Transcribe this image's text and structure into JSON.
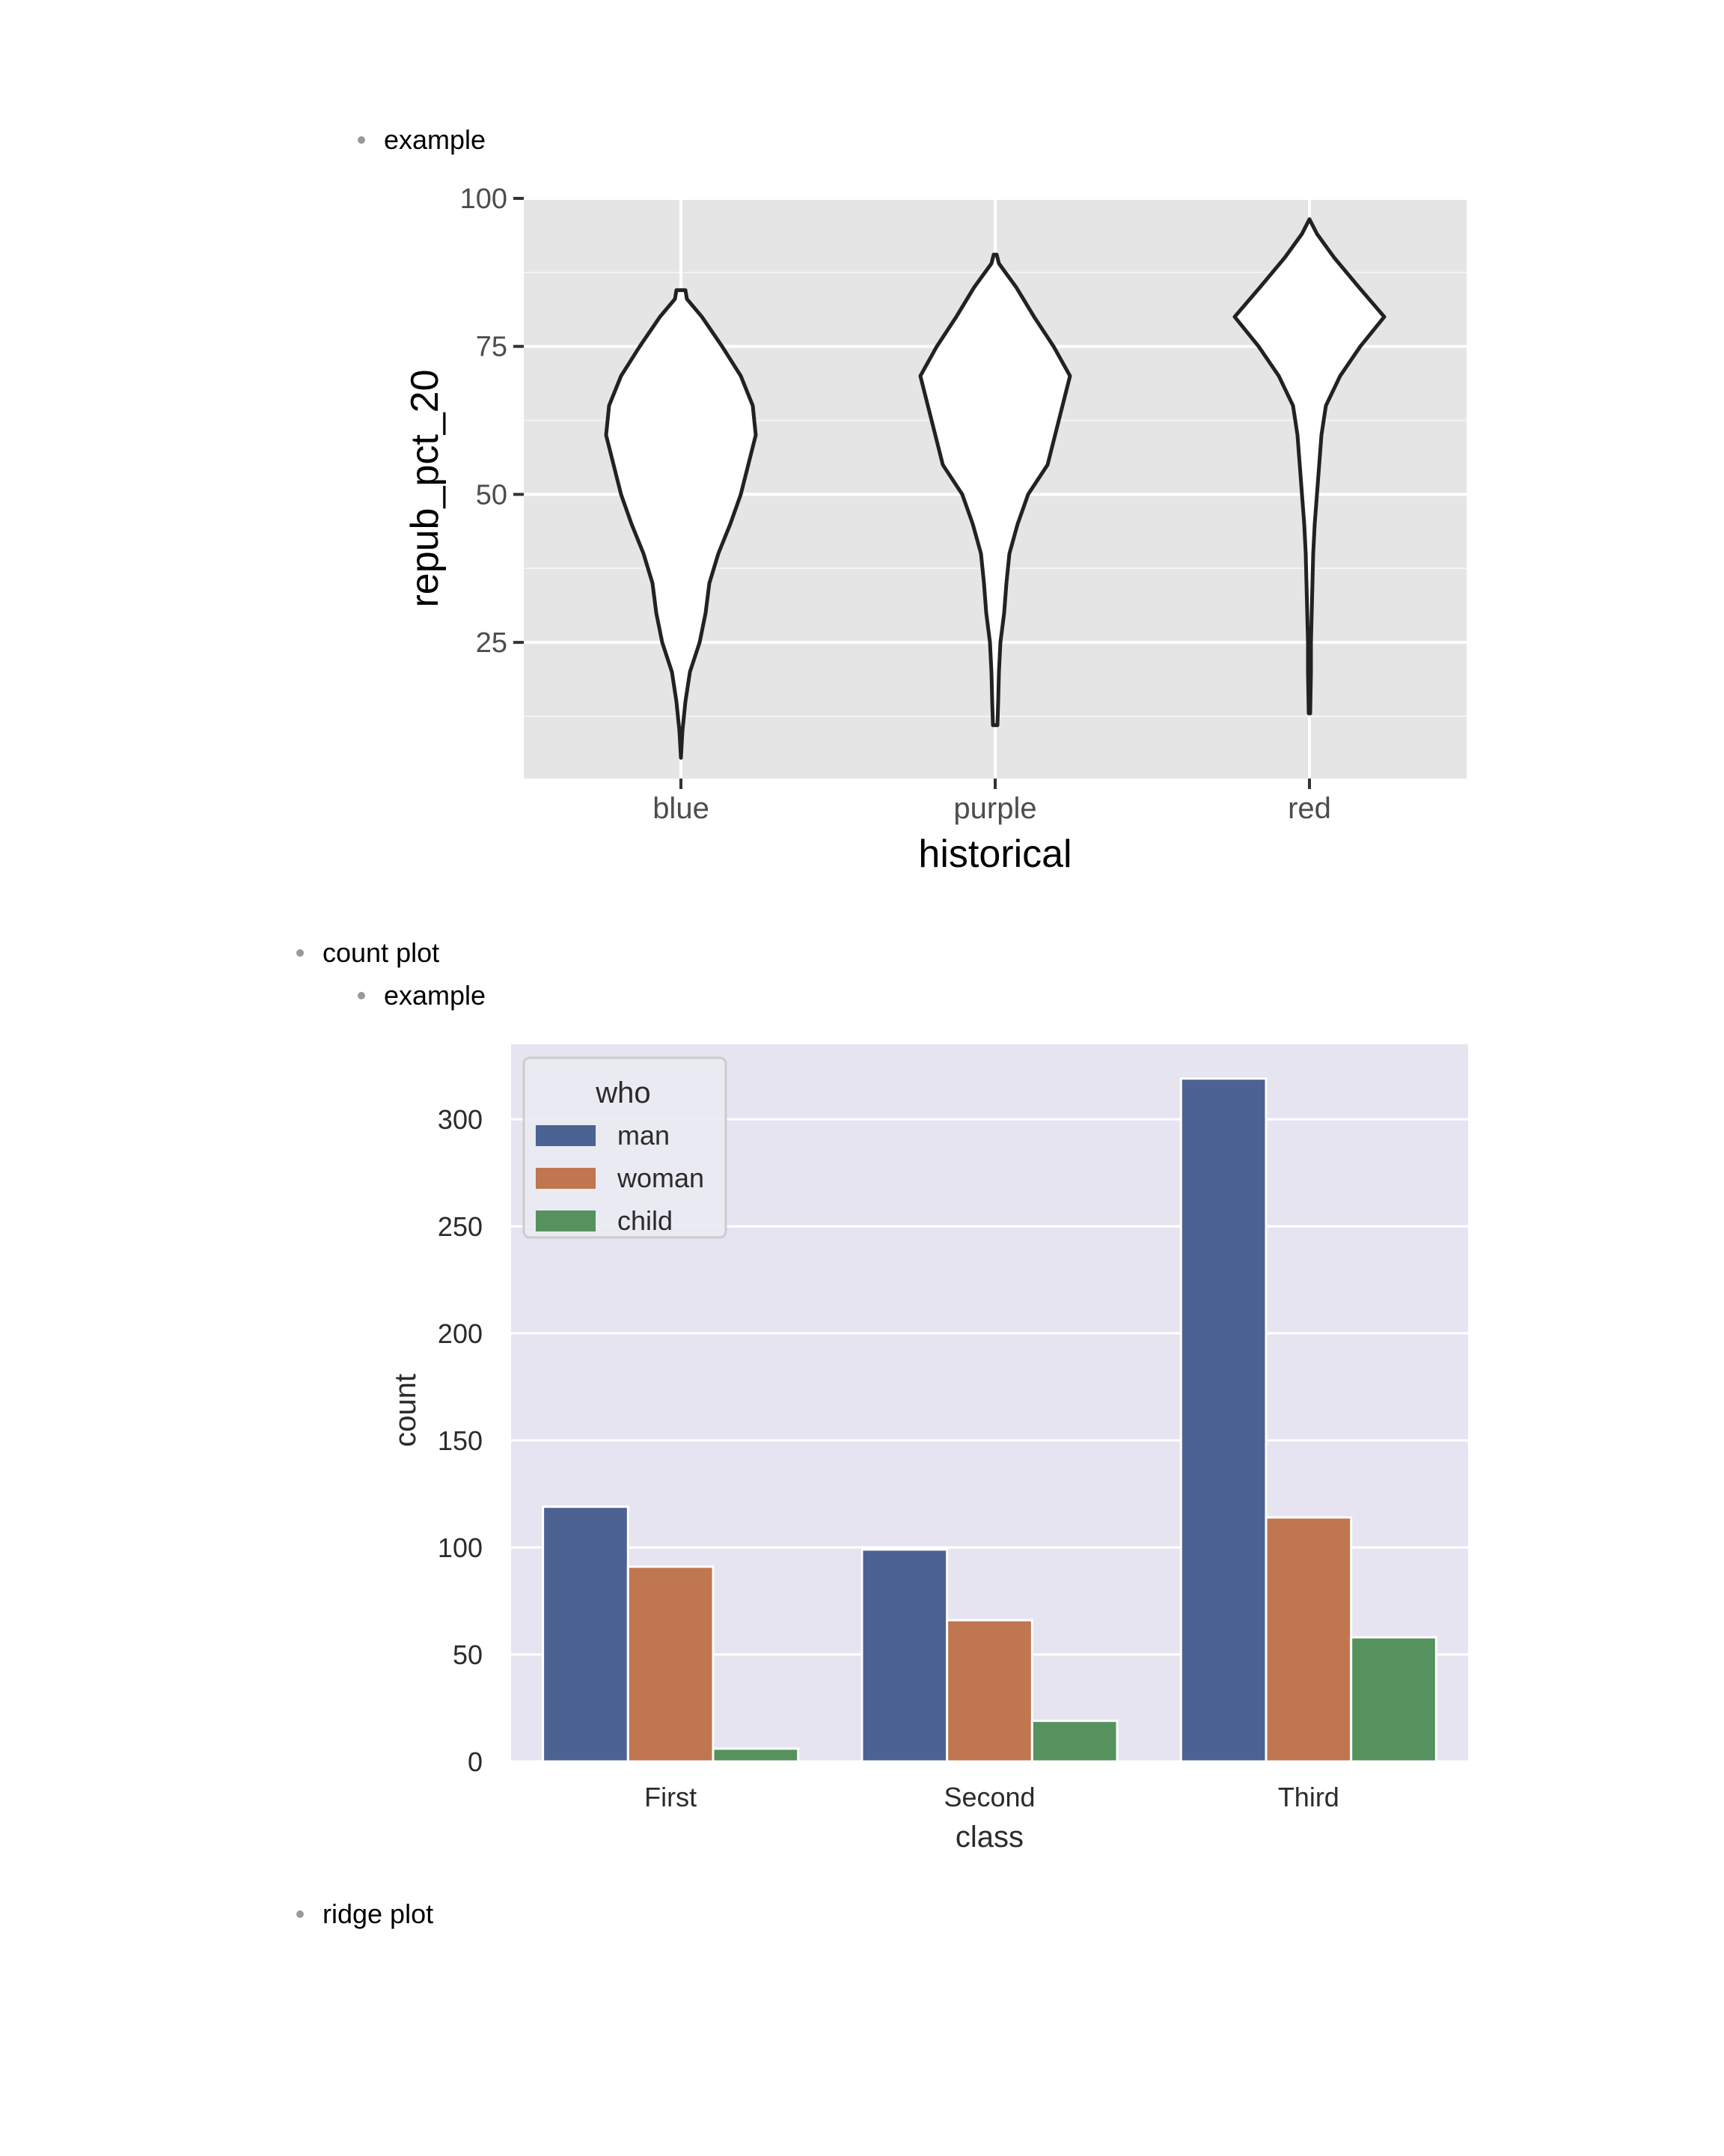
{
  "document": {
    "bullets": [
      {
        "text": "example"
      },
      {
        "text": "count plot"
      },
      {
        "text": "example"
      },
      {
        "text": "ridge plot"
      }
    ]
  },
  "chart_data": [
    {
      "type": "violin",
      "xlabel": "historical",
      "ylabel": "repub_pct_20",
      "categories": [
        "blue",
        "purple",
        "red"
      ],
      "yticks": [
        25,
        50,
        75,
        100
      ],
      "ylim": [
        2,
        100
      ],
      "grid": true,
      "background": "#e5e5e5",
      "violins": [
        {
          "category": "blue",
          "min": 5.5,
          "max": 84.5,
          "profile": [
            [
              5.5,
              0
            ],
            [
              10,
              0.02
            ],
            [
              15,
              0.06
            ],
            [
              20,
              0.12
            ],
            [
              25,
              0.25
            ],
            [
              30,
              0.33
            ],
            [
              35,
              0.38
            ],
            [
              40,
              0.5
            ],
            [
              45,
              0.66
            ],
            [
              50,
              0.8
            ],
            [
              55,
              0.9
            ],
            [
              60,
              1.0
            ],
            [
              65,
              0.96
            ],
            [
              70,
              0.8
            ],
            [
              75,
              0.55
            ],
            [
              80,
              0.28
            ],
            [
              83,
              0.08
            ],
            [
              84.5,
              0.06
            ]
          ]
        },
        {
          "category": "purple",
          "min": 11,
          "max": 90.5,
          "profile": [
            [
              11,
              0.03
            ],
            [
              15,
              0.04
            ],
            [
              20,
              0.05
            ],
            [
              25,
              0.07
            ],
            [
              30,
              0.12
            ],
            [
              35,
              0.15
            ],
            [
              40,
              0.19
            ],
            [
              45,
              0.3
            ],
            [
              50,
              0.44
            ],
            [
              55,
              0.7
            ],
            [
              60,
              0.8
            ],
            [
              65,
              0.9
            ],
            [
              70,
              1.0
            ],
            [
              75,
              0.78
            ],
            [
              80,
              0.52
            ],
            [
              85,
              0.28
            ],
            [
              89,
              0.05
            ],
            [
              90.5,
              0.02
            ]
          ]
        },
        {
          "category": "red",
          "min": 13,
          "max": 96.5,
          "profile": [
            [
              13,
              0.01
            ],
            [
              20,
              0.02
            ],
            [
              25,
              0.02
            ],
            [
              30,
              0.03
            ],
            [
              35,
              0.04
            ],
            [
              40,
              0.05
            ],
            [
              45,
              0.07
            ],
            [
              50,
              0.1
            ],
            [
              55,
              0.13
            ],
            [
              60,
              0.16
            ],
            [
              65,
              0.22
            ],
            [
              70,
              0.41
            ],
            [
              75,
              0.68
            ],
            [
              80,
              1.0
            ],
            [
              85,
              0.66
            ],
            [
              90,
              0.33
            ],
            [
              94,
              0.1
            ],
            [
              96.5,
              0.0
            ]
          ]
        }
      ]
    },
    {
      "type": "bar",
      "xlabel": "class",
      "ylabel": "count",
      "categories": [
        "First",
        "Second",
        "Third"
      ],
      "legend_title": "who",
      "legend_position": "top-left",
      "yticks": [
        0,
        50,
        100,
        150,
        200,
        250,
        300
      ],
      "ylim": [
        0,
        335
      ],
      "grid": true,
      "background": "#e5e4f0",
      "series": [
        {
          "name": "man",
          "color": "#4c6292",
          "values": [
            119,
            99,
            319
          ]
        },
        {
          "name": "woman",
          "color": "#c0764f",
          "values": [
            91,
            66,
            114
          ]
        },
        {
          "name": "child",
          "color": "#55925e",
          "values": [
            6,
            19,
            58
          ]
        }
      ]
    }
  ]
}
